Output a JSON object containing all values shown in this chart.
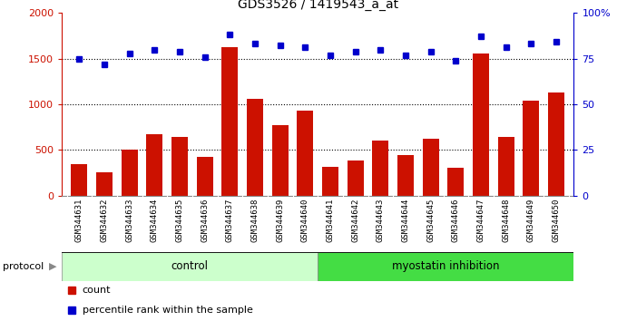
{
  "title": "GDS3526 / 1419543_a_at",
  "samples": [
    "GSM344631",
    "GSM344632",
    "GSM344633",
    "GSM344634",
    "GSM344635",
    "GSM344636",
    "GSM344637",
    "GSM344638",
    "GSM344639",
    "GSM344640",
    "GSM344641",
    "GSM344642",
    "GSM344643",
    "GSM344644",
    "GSM344645",
    "GSM344646",
    "GSM344647",
    "GSM344648",
    "GSM344649",
    "GSM344650"
  ],
  "counts": [
    350,
    260,
    500,
    670,
    640,
    430,
    1620,
    1060,
    770,
    930,
    320,
    390,
    600,
    450,
    620,
    310,
    1560,
    640,
    1040,
    1130
  ],
  "percentile_ranks": [
    75,
    72,
    78,
    80,
    79,
    76,
    88,
    83,
    82,
    81,
    77,
    79,
    80,
    77,
    79,
    74,
    87,
    81,
    83,
    84
  ],
  "group1_label": "control",
  "group1_count": 10,
  "group2_label": "myostatin inhibition",
  "group2_count": 10,
  "protocol_label": "protocol",
  "bar_color": "#cc1100",
  "dot_color": "#0000cc",
  "left_ylim": [
    0,
    2000
  ],
  "right_ylim": [
    0,
    100
  ],
  "left_yticks": [
    0,
    500,
    1000,
    1500,
    2000
  ],
  "right_yticks": [
    0,
    25,
    50,
    75,
    100
  ],
  "right_yticklabels": [
    "0",
    "25",
    "50",
    "75",
    "100%"
  ],
  "grid_values": [
    500,
    1000,
    1500
  ],
  "background_color": "#ffffff",
  "plot_bg": "#ffffff",
  "label_bg": "#cccccc",
  "control_color": "#ccffcc",
  "myo_color": "#44dd44",
  "legend_count_label": "count",
  "legend_pct_label": "percentile rank within the sample"
}
